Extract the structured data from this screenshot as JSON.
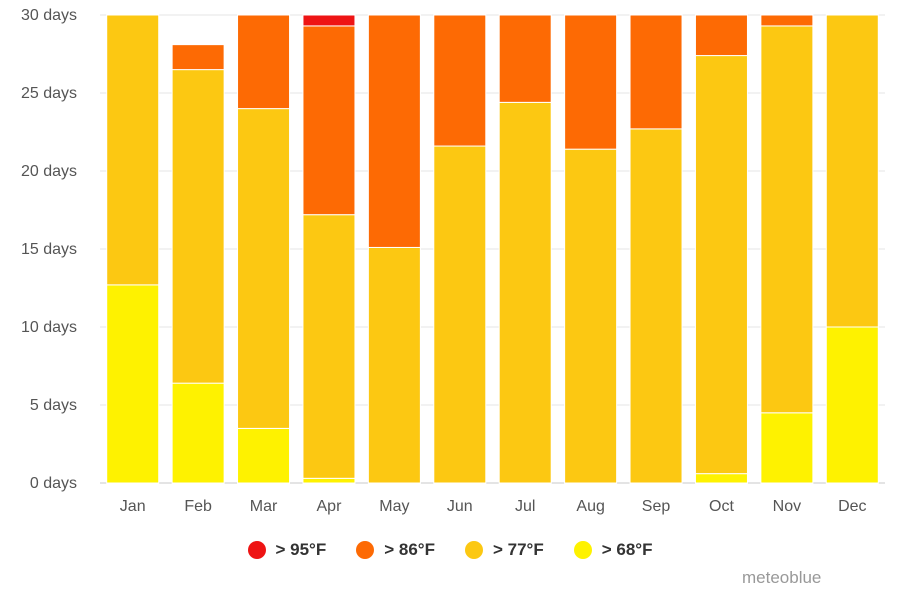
{
  "chart_data": {
    "type": "bar",
    "stacked": true,
    "categories": [
      "Jan",
      "Feb",
      "Mar",
      "Apr",
      "May",
      "Jun",
      "Jul",
      "Aug",
      "Sep",
      "Oct",
      "Nov",
      "Dec"
    ],
    "ylim": [
      0,
      30
    ],
    "yticks": [
      "0 days",
      "5 days",
      "10 days",
      "15 days",
      "20 days",
      "25 days",
      "30 days"
    ],
    "grid": true,
    "legend_position": "bottom",
    "series": [
      {
        "name": "> 68°F",
        "color": "#fef200",
        "values": [
          12.7,
          6.4,
          3.5,
          0.3,
          0,
          0,
          0,
          0,
          0,
          0.6,
          4.5,
          10.0
        ]
      },
      {
        "name": "> 77°F",
        "color": "#fcc812",
        "values": [
          17.3,
          20.1,
          20.5,
          16.9,
          15.1,
          21.6,
          24.4,
          21.4,
          22.7,
          26.8,
          24.8,
          20.0
        ]
      },
      {
        "name": "> 86°F",
        "color": "#fd6a04",
        "values": [
          0,
          1.6,
          6.0,
          12.1,
          14.9,
          8.4,
          5.6,
          8.6,
          7.3,
          2.6,
          0.7,
          0
        ]
      },
      {
        "name": "> 95°F",
        "color": "#ee1414",
        "values": [
          0,
          0,
          0,
          0.7,
          0,
          0,
          0,
          0,
          0,
          0,
          0,
          0
        ]
      }
    ]
  },
  "legend": {
    "items": [
      {
        "label": "> 95°F",
        "color": "#ee1414"
      },
      {
        "label": "> 86°F",
        "color": "#fd6a04"
      },
      {
        "label": "> 77°F",
        "color": "#fcc812"
      },
      {
        "label": "> 68°F",
        "color": "#fef200"
      }
    ]
  },
  "credit": "meteoblue"
}
